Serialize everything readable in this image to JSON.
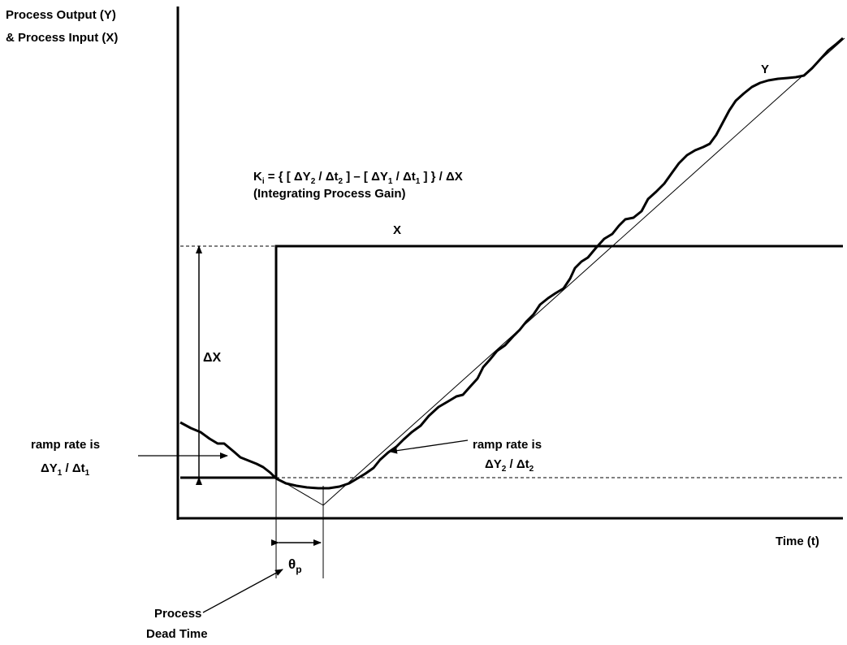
{
  "yaxis": {
    "label_line1": "Process Output (Y)",
    "label_line2": "& Process Input (X)"
  },
  "xaxis": {
    "label": "Time (t)"
  },
  "formula": {
    "ki": "K",
    "ki_sub": "i",
    "part1": " = { [ ΔY",
    "sub1": "2",
    "part2": " / Δt",
    "sub2": "2",
    "part3": " ] – [ ΔY",
    "sub3": "1",
    "part4": " / Δt",
    "sub4": "1",
    "part5": " ] } / ΔX",
    "caption": "(Integrating Process Gain)"
  },
  "signals": {
    "x_label": "X",
    "y_label": "Y"
  },
  "delta_x": {
    "label": "ΔX"
  },
  "ramp1": {
    "line1": "ramp rate is",
    "dy": "ΔY",
    "dy_sub": "1",
    "mid": " / Δt",
    "dt_sub": "1"
  },
  "ramp2": {
    "line1": "ramp rate is",
    "dy": "ΔY",
    "dy_sub": "2",
    "mid": " / Δt",
    "dt_sub": "2"
  },
  "dead_time": {
    "symbol": "θ",
    "symbol_sub": "p",
    "line1": "Process",
    "line2": "Dead Time"
  },
  "colors": {
    "ink": "#000000",
    "background": "#ffffff"
  }
}
